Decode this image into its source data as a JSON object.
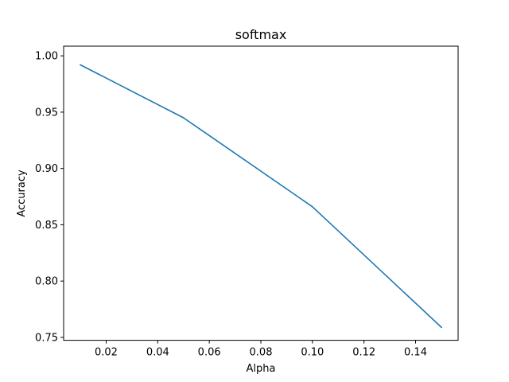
{
  "chart_data": {
    "type": "line",
    "title": "softmax",
    "xlabel": "Alpha",
    "ylabel": "Accuracy",
    "x": [
      0.01,
      0.05,
      0.1,
      0.15
    ],
    "series": [
      {
        "values": [
          0.992,
          0.945,
          0.866,
          0.759
        ],
        "color": "#1f77b4"
      }
    ],
    "xlim": [
      0.0035,
      0.1565
    ],
    "ylim": [
      0.7474,
      1.0086
    ],
    "xticks": [
      "0.02",
      "0.04",
      "0.06",
      "0.08",
      "0.10",
      "0.12",
      "0.14"
    ],
    "xtick_values": [
      0.02,
      0.04,
      0.06,
      0.08,
      0.1,
      0.12,
      0.14
    ],
    "yticks": [
      "0.75",
      "0.80",
      "0.85",
      "0.90",
      "0.95",
      "1.00"
    ],
    "ytick_values": [
      0.75,
      0.8,
      0.85,
      0.9,
      0.95,
      1.0
    ],
    "grid": false,
    "legend": "none"
  }
}
